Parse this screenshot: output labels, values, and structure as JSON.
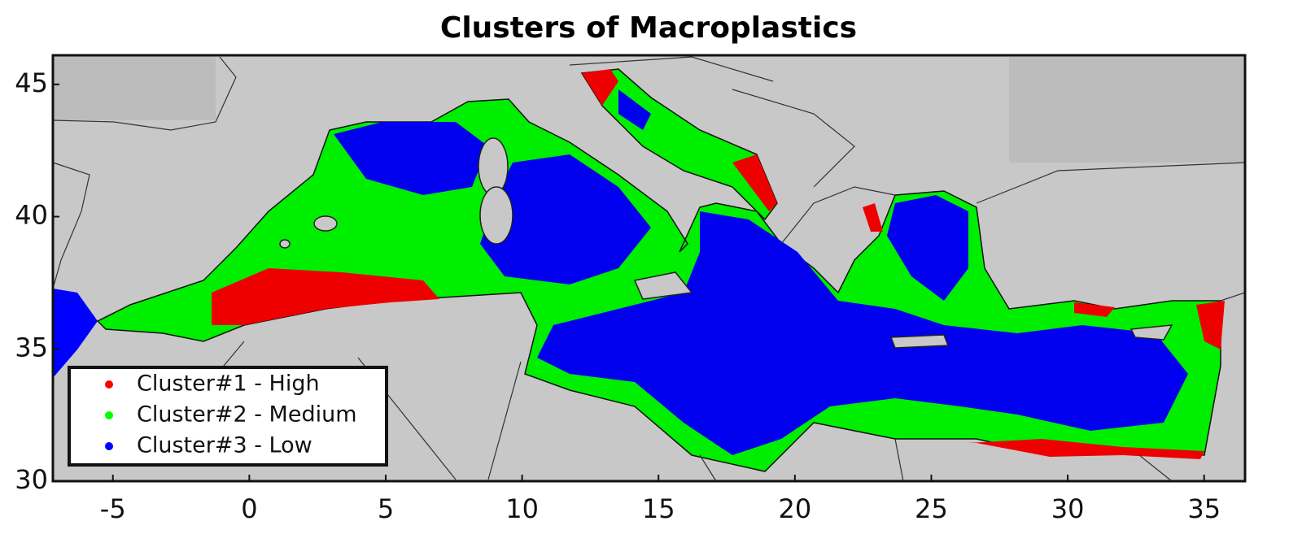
{
  "chart_data": {
    "type": "map",
    "title": "Clusters of Macroplastics",
    "xlim": [
      -7.2,
      36.5
    ],
    "ylim": [
      30,
      46.1
    ],
    "xticks": [
      -5,
      0,
      5,
      10,
      15,
      20,
      25,
      30,
      35
    ],
    "yticks": [
      30,
      35,
      40,
      45
    ],
    "legend": "lower left",
    "series": [
      {
        "name": "Cluster#1 - High",
        "color": "#ff0000"
      },
      {
        "name": "Cluster#2 - Medium",
        "color": "#00ff00"
      },
      {
        "name": "Cluster#3 - Low",
        "color": "#0000ff"
      }
    ]
  }
}
